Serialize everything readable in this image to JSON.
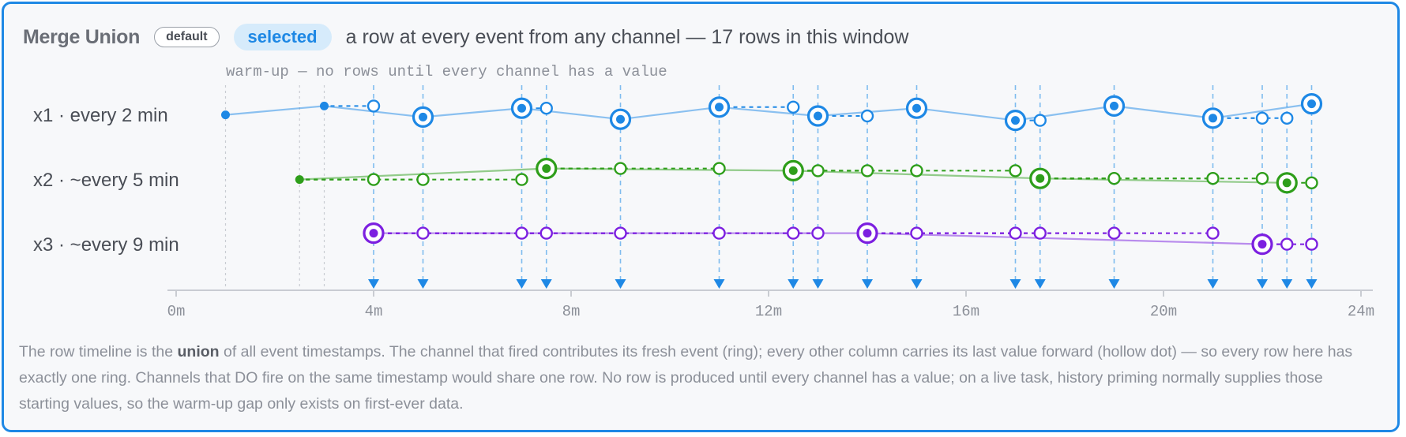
{
  "header": {
    "title": "Merge Union",
    "badge_default": "default",
    "badge_selected": "selected",
    "subtitle": "a row at every event from any channel — 17 rows in this window"
  },
  "warmup_label": "warm-up — no rows until every channel has a value",
  "caption": {
    "part1": "The row timeline is the ",
    "bold": "union",
    "part2": " of all event timestamps. The channel that fired contributes its fresh event (ring); every other column carries its last value forward (hollow dot) — so every row here has exactly one ring. Channels that DO fire on the same timestamp would share one row. No row is produced until every channel has a value; on a live task, history priming normally supplies those starting values, so the warm-up gap only exists on first-ever data."
  },
  "chart_data": {
    "type": "timeline",
    "x_unit": "min",
    "xlim": [
      0,
      24
    ],
    "tick_values": [
      0,
      4,
      8,
      12,
      16,
      20,
      24
    ],
    "tick_labels": [
      "0m",
      "4m",
      "8m",
      "12m",
      "16m",
      "20m",
      "24m"
    ],
    "row_times": [
      4,
      5,
      7,
      7.5,
      9,
      11,
      12.5,
      13,
      14,
      15,
      17,
      17.5,
      19,
      21,
      22,
      22.5,
      23
    ],
    "colors": {
      "x1": "#1e88e5",
      "x2": "#2e9e1a",
      "x3": "#7c1fe0",
      "row_marker": "#1e88e5"
    },
    "channels": [
      {
        "name": "x1 · every 2 min",
        "key": "x1",
        "warmup_events": [
          1,
          3
        ],
        "events": [
          5,
          7,
          9,
          11,
          13,
          15,
          17,
          19,
          21,
          23
        ]
      },
      {
        "name": "x2 · ~every 5 min",
        "key": "x2",
        "warmup_events": [
          2.5
        ],
        "events": [
          7.5,
          12.5,
          17.5,
          22.5
        ]
      },
      {
        "name": "x3 · ~every 9 min",
        "key": "x3",
        "warmup_events": [],
        "events": [
          4,
          14,
          22
        ]
      }
    ]
  }
}
